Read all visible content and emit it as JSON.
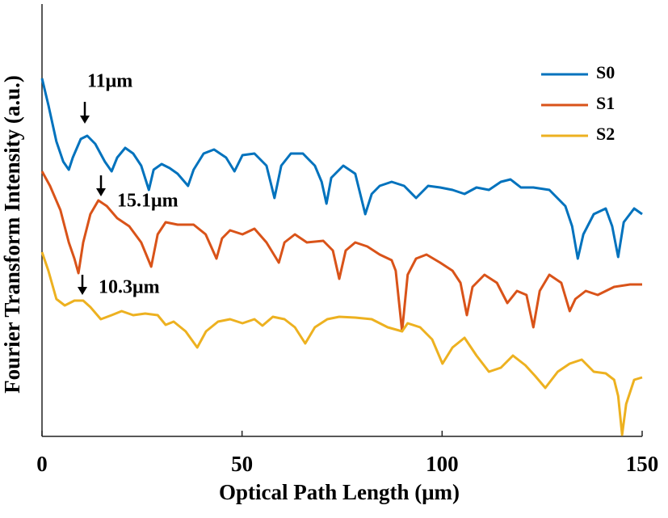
{
  "chart_data": {
    "type": "line",
    "xlabel": "Optical Path Length (μm)",
    "ylabel": "Fourier Transform Intensity (a.u.)",
    "xlim": [
      0,
      150
    ],
    "xticks": [
      0,
      50,
      100,
      150
    ],
    "ylim": [
      0,
      535
    ],
    "legend": "upper right",
    "annotations": [
      "11μm",
      "15.1μm",
      "10.3μm"
    ],
    "series": [
      {
        "name": "S0",
        "color": "#0072BD",
        "x": [
          0,
          1.6,
          3.6,
          5.3,
          6.7,
          7.7,
          9.7,
          11.3,
          13.3,
          15.7,
          17.4,
          18.8,
          20.8,
          22.8,
          24.8,
          26.7,
          27.9,
          29.9,
          31.9,
          33.9,
          36.5,
          37.9,
          40.4,
          43.0,
          46.0,
          48.1,
          50.1,
          53.1,
          56.1,
          58.1,
          59.8,
          62.2,
          65.2,
          68.2,
          69.9,
          71.1,
          72.3,
          75.3,
          78.3,
          80.8,
          82.4,
          84.4,
          87.4,
          90.5,
          93.5,
          96.5,
          99.5,
          102.6,
          105.6,
          108.6,
          111.7,
          114.7,
          117.1,
          119.7,
          122.8,
          126.8,
          130.8,
          132.5,
          133.9,
          135.3,
          137.9,
          140.9,
          142.5,
          144.0,
          145.4,
          148.0,
          150
        ],
        "values": [
          443,
          410,
          365,
          340,
          330,
          345,
          368,
          372,
          362,
          340,
          328,
          345,
          357,
          350,
          335,
          305,
          330,
          337,
          332,
          325,
          310,
          330,
          350,
          355,
          345,
          328,
          348,
          350,
          335,
          295,
          335,
          350,
          350,
          335,
          315,
          288,
          320,
          335,
          325,
          275,
          300,
          310,
          315,
          310,
          295,
          310,
          308,
          305,
          300,
          308,
          305,
          315,
          318,
          308,
          308,
          305,
          285,
          260,
          220,
          250,
          275,
          282,
          260,
          222,
          265,
          282,
          275
        ]
      },
      {
        "name": "S1",
        "color": "#D95319",
        "x": [
          0,
          2.0,
          4.6,
          6.7,
          8.1,
          9.1,
          10.3,
          12.1,
          14.1,
          16.2,
          18.8,
          21.8,
          24.8,
          27.3,
          28.9,
          30.9,
          33.9,
          37.9,
          40.9,
          43.6,
          45.0,
          47.0,
          50.1,
          53.1,
          56.1,
          59.2,
          60.6,
          63.2,
          66.2,
          70.3,
          72.7,
          74.3,
          75.9,
          78.3,
          81.3,
          84.4,
          87.4,
          88.4,
          90.0,
          91.4,
          93.5,
          96.1,
          99.5,
          102.6,
          104.6,
          106.2,
          107.6,
          110.6,
          113.7,
          116.3,
          118.7,
          121.1,
          122.8,
          124.4,
          126.8,
          129.8,
          131.9,
          133.3,
          135.9,
          138.9,
          143.0,
          147.0,
          150
        ],
        "values": [
          328,
          310,
          280,
          240,
          220,
          202,
          240,
          275,
          292,
          285,
          270,
          260,
          240,
          210,
          250,
          265,
          262,
          262,
          250,
          220,
          245,
          255,
          250,
          257,
          240,
          215,
          240,
          250,
          240,
          242,
          230,
          195,
          230,
          240,
          235,
          225,
          218,
          205,
          130,
          200,
          220,
          225,
          215,
          205,
          190,
          150,
          185,
          200,
          190,
          165,
          180,
          175,
          135,
          180,
          200,
          190,
          155,
          170,
          180,
          175,
          185,
          188,
          188
        ]
      },
      {
        "name": "S2",
        "color": "#EDB120",
        "x": [
          0,
          1.6,
          3.6,
          5.7,
          8.1,
          10.3,
          12.1,
          14.7,
          17.4,
          19.9,
          22.8,
          25.8,
          28.9,
          30.9,
          32.9,
          35.9,
          38.8,
          41.0,
          44.0,
          47.0,
          50.1,
          53.1,
          55.1,
          57.7,
          60.6,
          63.2,
          65.8,
          68.2,
          71.3,
          74.3,
          78.3,
          82.4,
          86.4,
          90.0,
          91.4,
          94.5,
          97.5,
          100.1,
          102.6,
          105.6,
          108.6,
          111.7,
          114.7,
          117.7,
          120.8,
          123.2,
          125.8,
          128.9,
          131.9,
          134.9,
          137.9,
          140.9,
          143.0,
          144.0,
          145.0,
          146.0,
          148.0,
          150
        ],
        "values": [
          228,
          205,
          170,
          162,
          168,
          168,
          160,
          145,
          150,
          155,
          150,
          152,
          150,
          138,
          142,
          130,
          110,
          130,
          142,
          145,
          140,
          145,
          137,
          148,
          145,
          135,
          115,
          135,
          145,
          148,
          147,
          145,
          135,
          130,
          140,
          135,
          120,
          90,
          110,
          122,
          100,
          80,
          85,
          100,
          88,
          75,
          60,
          80,
          90,
          95,
          80,
          78,
          70,
          50,
          2,
          40,
          70,
          73
        ]
      }
    ]
  }
}
